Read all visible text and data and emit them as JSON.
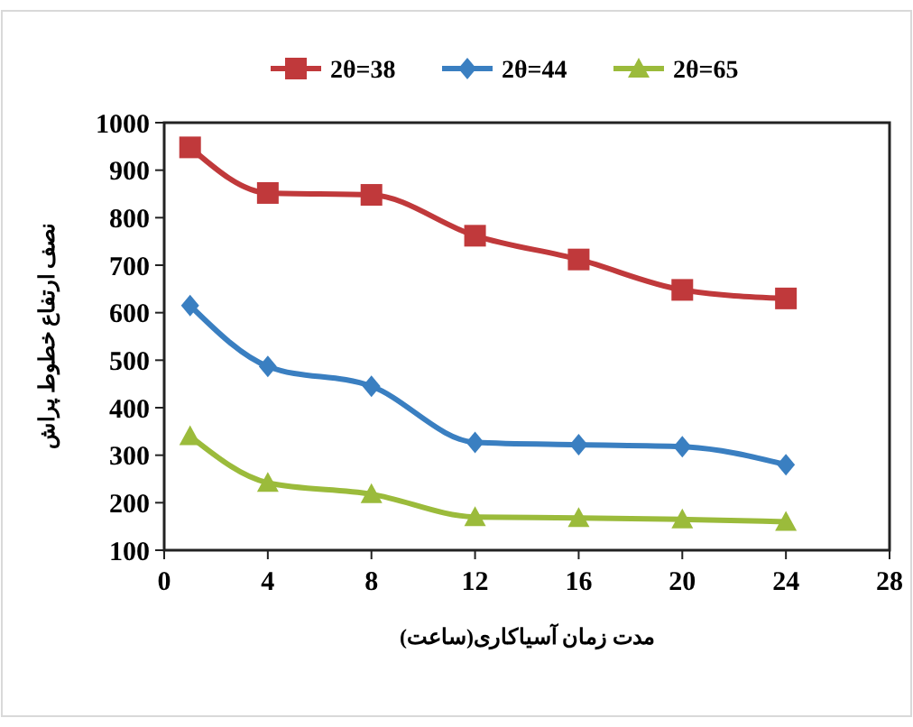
{
  "chart_data": {
    "type": "line",
    "xlabel": "مدت زمان آسیاکاری(ساعت)",
    "ylabel": "نصف ارتفاع خطوط پراش",
    "x": [
      1,
      4,
      8,
      12,
      16,
      20,
      24
    ],
    "series": [
      {
        "name": "2θ=38",
        "color": "#c0393b",
        "marker": "square",
        "values": [
          948,
          852,
          848,
          762,
          712,
          648,
          630
        ]
      },
      {
        "name": "2θ=44",
        "color": "#3a7fc1",
        "marker": "diamond",
        "values": [
          615,
          487,
          445,
          327,
          322,
          318,
          280
        ]
      },
      {
        "name": "2θ=65",
        "color": "#9bbb3b",
        "marker": "triangle",
        "values": [
          340,
          242,
          218,
          170,
          168,
          165,
          160
        ]
      }
    ],
    "xlim": [
      0,
      28
    ],
    "xticks": [
      0,
      4,
      8,
      12,
      16,
      20,
      24,
      28
    ],
    "ylim": [
      100,
      1000
    ],
    "yticks": [
      100,
      200,
      300,
      400,
      500,
      600,
      700,
      800,
      900,
      1000
    ],
    "grid": false,
    "legend": "top"
  }
}
